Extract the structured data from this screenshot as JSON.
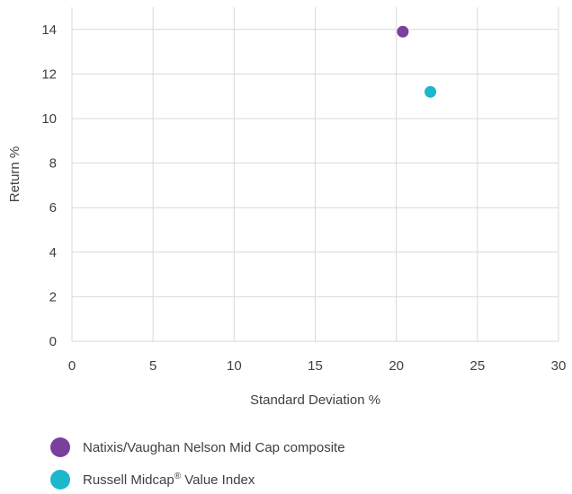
{
  "chart_data": {
    "type": "scatter",
    "xlabel": "Standard Deviation %",
    "ylabel": "Return %",
    "xlim": [
      0,
      30
    ],
    "ylim": [
      0,
      15
    ],
    "x_ticks": [
      0,
      5,
      10,
      15,
      20,
      25,
      30
    ],
    "y_ticks": [
      0,
      2,
      4,
      6,
      8,
      10,
      12,
      14
    ],
    "grid": true,
    "legend_position": "bottom",
    "series": [
      {
        "name": "Natixis/Vaughan Nelson Mid Cap composite",
        "color": "#7B3F9E",
        "points": [
          {
            "x": 20.4,
            "y": 13.9
          }
        ]
      },
      {
        "name": "Russell Midcap® Value Index",
        "color": "#1BB8CC",
        "points": [
          {
            "x": 22.1,
            "y": 11.2
          }
        ]
      }
    ]
  },
  "legend": {
    "items": [
      {
        "label_main": "Natixis/Vaughan Nelson Mid Cap composite",
        "label_sup": "",
        "label_rest": ""
      },
      {
        "label_main": "Russell Midcap",
        "label_sup": "®",
        "label_rest": " Value Index"
      }
    ]
  }
}
